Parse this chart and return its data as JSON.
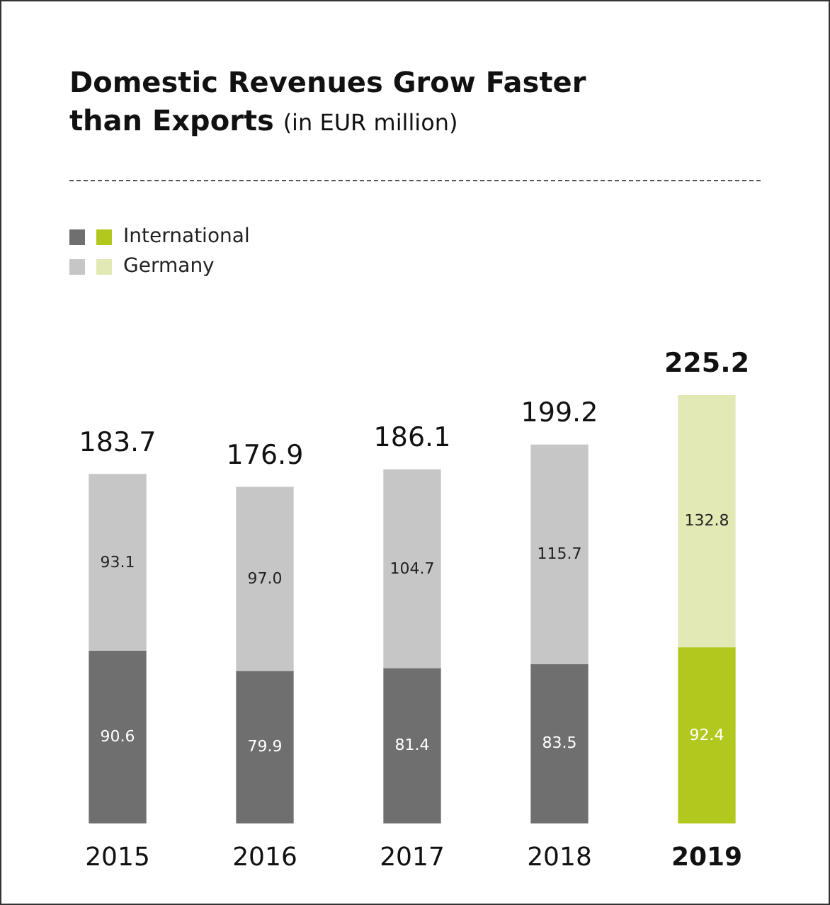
{
  "chart_data": {
    "type": "bar",
    "title": "Domestic Revenues Grow Faster than Exports",
    "subtitle": "(in EUR million)",
    "categories": [
      "2015",
      "2016",
      "2017",
      "2018",
      "2019"
    ],
    "stacked": true,
    "series": [
      {
        "name": "International",
        "colors": [
          "#6f6f6f",
          "#6f6f6f",
          "#6f6f6f",
          "#6f6f6f",
          "#b3c81e"
        ],
        "values": [
          90.6,
          79.9,
          81.4,
          83.5,
          92.4
        ],
        "value_labels": [
          "90.6",
          "79.9",
          "81.4",
          "83.5",
          "92.4"
        ]
      },
      {
        "name": "Germany",
        "colors": [
          "#c6c6c6",
          "#c6c6c6",
          "#c6c6c6",
          "#c6c6c6",
          "#e2e9b4"
        ],
        "values": [
          93.1,
          97.0,
          104.7,
          115.7,
          132.8
        ],
        "value_labels": [
          "93.1",
          "97.0",
          "104.7",
          "115.7",
          "132.8"
        ]
      }
    ],
    "totals": [
      "183.7",
      "176.9",
      "186.1",
      "199.2",
      "225.2"
    ],
    "legend": "top left",
    "grid": false
  }
}
